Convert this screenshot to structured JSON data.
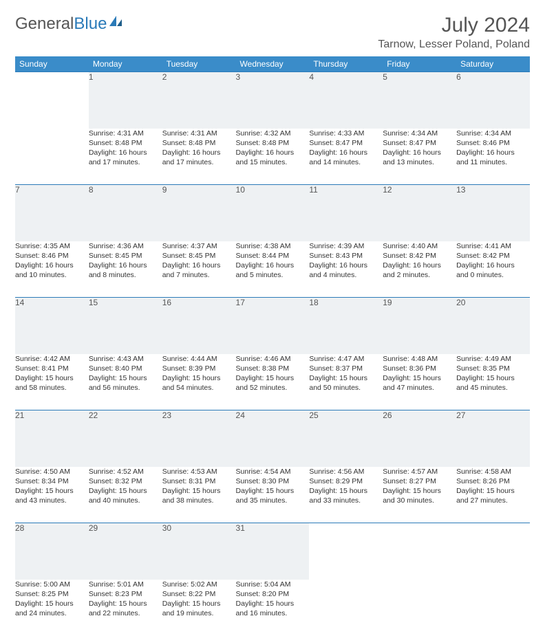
{
  "logo": {
    "general": "General",
    "blue": "Blue"
  },
  "title": "July 2024",
  "location": "Tarnow, Lesser Poland, Poland",
  "colors": {
    "header_bg": "#3a8cc9",
    "header_text": "#ffffff",
    "daynum_bg": "#eef1f3",
    "rule": "#2a7ab8",
    "text": "#333333",
    "title_text": "#555555"
  },
  "day_headers": [
    "Sunday",
    "Monday",
    "Tuesday",
    "Wednesday",
    "Thursday",
    "Friday",
    "Saturday"
  ],
  "weeks": [
    {
      "nums": [
        "",
        "1",
        "2",
        "3",
        "4",
        "5",
        "6"
      ],
      "cells": [
        null,
        {
          "sr": "Sunrise: 4:31 AM",
          "ss": "Sunset: 8:48 PM",
          "d1": "Daylight: 16 hours",
          "d2": "and 17 minutes."
        },
        {
          "sr": "Sunrise: 4:31 AM",
          "ss": "Sunset: 8:48 PM",
          "d1": "Daylight: 16 hours",
          "d2": "and 17 minutes."
        },
        {
          "sr": "Sunrise: 4:32 AM",
          "ss": "Sunset: 8:48 PM",
          "d1": "Daylight: 16 hours",
          "d2": "and 15 minutes."
        },
        {
          "sr": "Sunrise: 4:33 AM",
          "ss": "Sunset: 8:47 PM",
          "d1": "Daylight: 16 hours",
          "d2": "and 14 minutes."
        },
        {
          "sr": "Sunrise: 4:34 AM",
          "ss": "Sunset: 8:47 PM",
          "d1": "Daylight: 16 hours",
          "d2": "and 13 minutes."
        },
        {
          "sr": "Sunrise: 4:34 AM",
          "ss": "Sunset: 8:46 PM",
          "d1": "Daylight: 16 hours",
          "d2": "and 11 minutes."
        }
      ]
    },
    {
      "nums": [
        "7",
        "8",
        "9",
        "10",
        "11",
        "12",
        "13"
      ],
      "cells": [
        {
          "sr": "Sunrise: 4:35 AM",
          "ss": "Sunset: 8:46 PM",
          "d1": "Daylight: 16 hours",
          "d2": "and 10 minutes."
        },
        {
          "sr": "Sunrise: 4:36 AM",
          "ss": "Sunset: 8:45 PM",
          "d1": "Daylight: 16 hours",
          "d2": "and 8 minutes."
        },
        {
          "sr": "Sunrise: 4:37 AM",
          "ss": "Sunset: 8:45 PM",
          "d1": "Daylight: 16 hours",
          "d2": "and 7 minutes."
        },
        {
          "sr": "Sunrise: 4:38 AM",
          "ss": "Sunset: 8:44 PM",
          "d1": "Daylight: 16 hours",
          "d2": "and 5 minutes."
        },
        {
          "sr": "Sunrise: 4:39 AM",
          "ss": "Sunset: 8:43 PM",
          "d1": "Daylight: 16 hours",
          "d2": "and 4 minutes."
        },
        {
          "sr": "Sunrise: 4:40 AM",
          "ss": "Sunset: 8:42 PM",
          "d1": "Daylight: 16 hours",
          "d2": "and 2 minutes."
        },
        {
          "sr": "Sunrise: 4:41 AM",
          "ss": "Sunset: 8:42 PM",
          "d1": "Daylight: 16 hours",
          "d2": "and 0 minutes."
        }
      ]
    },
    {
      "nums": [
        "14",
        "15",
        "16",
        "17",
        "18",
        "19",
        "20"
      ],
      "cells": [
        {
          "sr": "Sunrise: 4:42 AM",
          "ss": "Sunset: 8:41 PM",
          "d1": "Daylight: 15 hours",
          "d2": "and 58 minutes."
        },
        {
          "sr": "Sunrise: 4:43 AM",
          "ss": "Sunset: 8:40 PM",
          "d1": "Daylight: 15 hours",
          "d2": "and 56 minutes."
        },
        {
          "sr": "Sunrise: 4:44 AM",
          "ss": "Sunset: 8:39 PM",
          "d1": "Daylight: 15 hours",
          "d2": "and 54 minutes."
        },
        {
          "sr": "Sunrise: 4:46 AM",
          "ss": "Sunset: 8:38 PM",
          "d1": "Daylight: 15 hours",
          "d2": "and 52 minutes."
        },
        {
          "sr": "Sunrise: 4:47 AM",
          "ss": "Sunset: 8:37 PM",
          "d1": "Daylight: 15 hours",
          "d2": "and 50 minutes."
        },
        {
          "sr": "Sunrise: 4:48 AM",
          "ss": "Sunset: 8:36 PM",
          "d1": "Daylight: 15 hours",
          "d2": "and 47 minutes."
        },
        {
          "sr": "Sunrise: 4:49 AM",
          "ss": "Sunset: 8:35 PM",
          "d1": "Daylight: 15 hours",
          "d2": "and 45 minutes."
        }
      ]
    },
    {
      "nums": [
        "21",
        "22",
        "23",
        "24",
        "25",
        "26",
        "27"
      ],
      "cells": [
        {
          "sr": "Sunrise: 4:50 AM",
          "ss": "Sunset: 8:34 PM",
          "d1": "Daylight: 15 hours",
          "d2": "and 43 minutes."
        },
        {
          "sr": "Sunrise: 4:52 AM",
          "ss": "Sunset: 8:32 PM",
          "d1": "Daylight: 15 hours",
          "d2": "and 40 minutes."
        },
        {
          "sr": "Sunrise: 4:53 AM",
          "ss": "Sunset: 8:31 PM",
          "d1": "Daylight: 15 hours",
          "d2": "and 38 minutes."
        },
        {
          "sr": "Sunrise: 4:54 AM",
          "ss": "Sunset: 8:30 PM",
          "d1": "Daylight: 15 hours",
          "d2": "and 35 minutes."
        },
        {
          "sr": "Sunrise: 4:56 AM",
          "ss": "Sunset: 8:29 PM",
          "d1": "Daylight: 15 hours",
          "d2": "and 33 minutes."
        },
        {
          "sr": "Sunrise: 4:57 AM",
          "ss": "Sunset: 8:27 PM",
          "d1": "Daylight: 15 hours",
          "d2": "and 30 minutes."
        },
        {
          "sr": "Sunrise: 4:58 AM",
          "ss": "Sunset: 8:26 PM",
          "d1": "Daylight: 15 hours",
          "d2": "and 27 minutes."
        }
      ]
    },
    {
      "nums": [
        "28",
        "29",
        "30",
        "31",
        "",
        "",
        ""
      ],
      "cells": [
        {
          "sr": "Sunrise: 5:00 AM",
          "ss": "Sunset: 8:25 PM",
          "d1": "Daylight: 15 hours",
          "d2": "and 24 minutes."
        },
        {
          "sr": "Sunrise: 5:01 AM",
          "ss": "Sunset: 8:23 PM",
          "d1": "Daylight: 15 hours",
          "d2": "and 22 minutes."
        },
        {
          "sr": "Sunrise: 5:02 AM",
          "ss": "Sunset: 8:22 PM",
          "d1": "Daylight: 15 hours",
          "d2": "and 19 minutes."
        },
        {
          "sr": "Sunrise: 5:04 AM",
          "ss": "Sunset: 8:20 PM",
          "d1": "Daylight: 15 hours",
          "d2": "and 16 minutes."
        },
        null,
        null,
        null
      ]
    }
  ]
}
